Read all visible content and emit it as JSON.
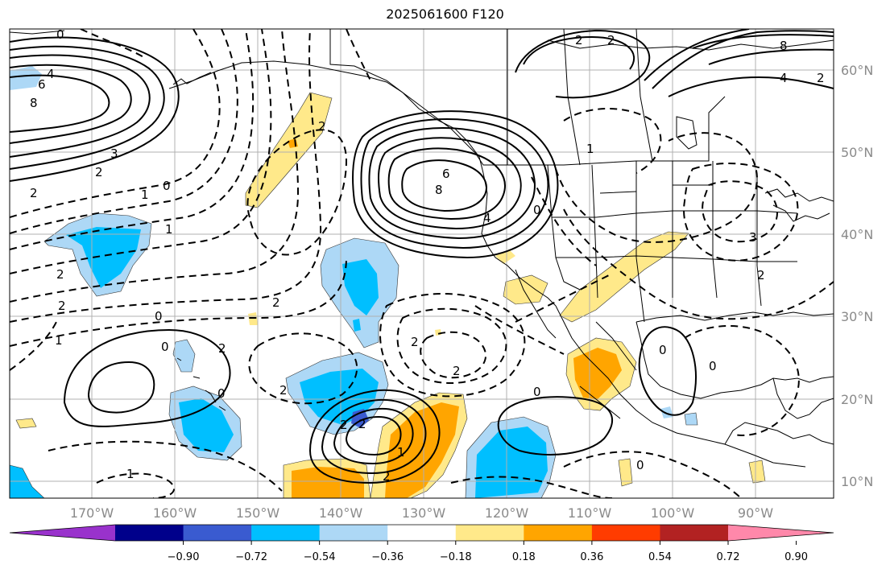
{
  "title": "2025061600 F120",
  "map": {
    "projection": "cylindrical",
    "lon_range": [
      -180,
      -80
    ],
    "lat_range": [
      8,
      65
    ],
    "lon_labels": [
      "170°W",
      "160°W",
      "150°W",
      "140°W",
      "130°W",
      "120°W",
      "110°W",
      "100°W",
      "90°W"
    ],
    "lat_labels": [
      "60°N",
      "50°N",
      "40°N",
      "30°N",
      "20°N",
      "10°N"
    ],
    "gridlines": true,
    "coastlines": true,
    "state_borders": true
  },
  "contour_labels": [
    "0",
    "4",
    "6",
    "8",
    "3",
    "2",
    "2",
    "1",
    "0",
    "1",
    "2",
    "2",
    "0",
    "1",
    "2",
    "2",
    "0",
    "2",
    "1",
    "6",
    "8",
    "4",
    "0",
    "1",
    "2",
    "2",
    "8",
    "4",
    "2",
    "3",
    "2",
    "2",
    "2",
    "2",
    "0",
    "0",
    "0",
    "0",
    "0",
    "2",
    "2",
    "1",
    "2"
  ],
  "colorbar": {
    "extend": "both",
    "ticks": [
      "−0.90",
      "−0.72",
      "−0.54",
      "−0.36",
      "−0.18",
      "0.18",
      "0.36",
      "0.54",
      "0.72",
      "0.90"
    ],
    "colors": [
      "#9932cc",
      "#00008b",
      "#3a5bd0",
      "#00bfff",
      "#add8f6",
      "#ffffff",
      "#ffe98a",
      "#ffa500",
      "#ff3c00",
      "#b22222",
      "#ff88aa"
    ]
  }
}
